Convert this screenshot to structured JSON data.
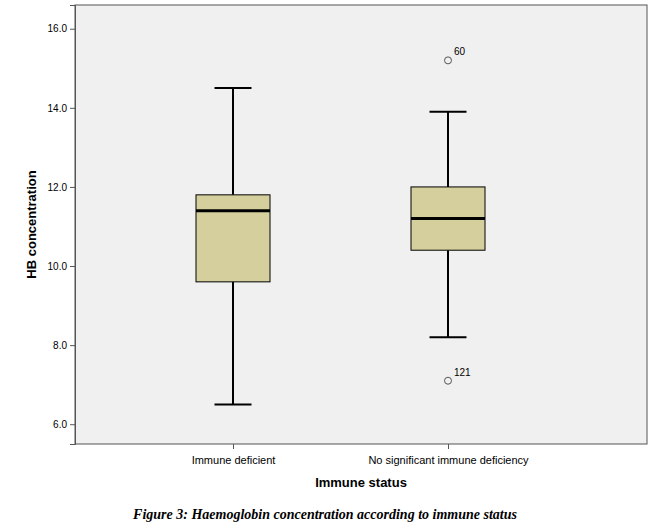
{
  "chart_data": {
    "type": "box",
    "title": "Figure 3: Haemoglobin concentration according to immune status",
    "x_label": "Immune status",
    "y_label": "HB concentration",
    "categories": [
      "Immune deficient",
      "No significant immune deficiency"
    ],
    "color": "#d4cf9d",
    "boxes": [
      {
        "whisker_low": 6.5,
        "q1": 9.6,
        "median": 11.4,
        "q3": 11.8,
        "whisker_high": 14.5,
        "outliers": []
      },
      {
        "whisker_low": 8.2,
        "q1": 10.4,
        "median": 11.2,
        "q3": 12.0,
        "whisker_high": 13.9,
        "outliers": [
          {
            "value": 15.2,
            "label": "60"
          },
          {
            "value": 7.1,
            "label": "121"
          }
        ]
      }
    ],
    "ylim": [
      5.5,
      16.6
    ],
    "yticks": [
      {
        "value": 6,
        "label": "6.0"
      },
      {
        "value": 8,
        "label": "8.0"
      },
      {
        "value": 10,
        "label": "10.0"
      },
      {
        "value": 12,
        "label": "12.0"
      },
      {
        "value": 14,
        "label": "14.0"
      },
      {
        "value": 16,
        "label": "16.0"
      }
    ],
    "grid": false
  }
}
